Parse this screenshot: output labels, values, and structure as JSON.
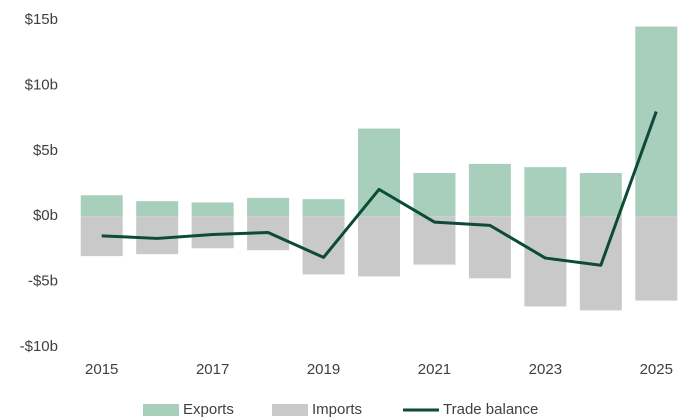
{
  "chart_data": {
    "type": "bar-line",
    "categories": [
      "2015",
      null,
      "2017",
      null,
      "2019",
      null,
      "2021",
      null,
      "2023",
      null,
      "2025"
    ],
    "series": [
      {
        "name": "Exports",
        "type": "bar",
        "color": "#a7cfbc",
        "values": [
          1.6,
          1.15,
          1.05,
          1.4,
          1.3,
          6.7,
          3.3,
          4.0,
          3.75,
          3.3,
          14.5
        ]
      },
      {
        "name": "Imports",
        "type": "bar",
        "color": "#c9c9c9",
        "values": [
          -3.05,
          -2.9,
          -2.45,
          -2.6,
          -4.45,
          -4.6,
          -3.7,
          -4.75,
          -6.9,
          -7.2,
          -6.45
        ]
      },
      {
        "name": "Trade balance",
        "type": "line",
        "color": "#0d4a38",
        "values": [
          -1.5,
          -1.7,
          -1.4,
          -1.25,
          -3.15,
          2.05,
          -0.45,
          -0.7,
          -3.2,
          -3.75,
          8.0
        ]
      }
    ],
    "ylim": [
      -10,
      15
    ],
    "yticks": [
      {
        "value": -10,
        "label": "-$10b"
      },
      {
        "value": -5,
        "label": "-$5b"
      },
      {
        "value": 0,
        "label": "$0b"
      },
      {
        "value": 5,
        "label": "$5b"
      },
      {
        "value": 10,
        "label": "$10b"
      },
      {
        "value": 15,
        "label": "$15b"
      }
    ],
    "grid": false,
    "legend": "bottom"
  }
}
